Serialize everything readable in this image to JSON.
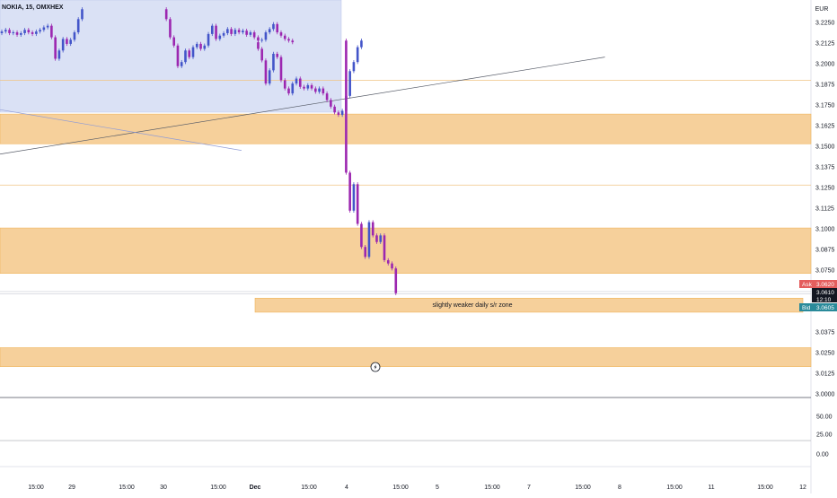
{
  "header": {
    "symbol_label": "NOKIA, 15, OMXHEX",
    "currency_label": "EUR"
  },
  "price_axis": {
    "ticks": [
      "3.2250",
      "3.2125",
      "3.2000",
      "3.1875",
      "3.1750",
      "3.1625",
      "3.1500",
      "3.1375",
      "3.1250",
      "3.1125",
      "3.1000",
      "3.0875",
      "3.0750",
      "3.0375",
      "3.0250",
      "3.0125",
      "3.0000"
    ]
  },
  "indicator_axis": {
    "ticks": [
      "50.00",
      "25.00",
      "0.00"
    ]
  },
  "quote_badges": {
    "ask_label": "Ask",
    "ask_value": "3.0620",
    "last_value": "3.0610",
    "countdown": "12:10",
    "bid_label": "Bid",
    "bid_value": "3.0605"
  },
  "annotation": {
    "zone_label": "slightly weaker daily s/r zone"
  },
  "time_axis": {
    "labels": [
      {
        "text": "15:00",
        "bold": false
      },
      {
        "text": "29",
        "bold": false
      },
      {
        "text": "15:00",
        "bold": false
      },
      {
        "text": "30",
        "bold": false
      },
      {
        "text": "15:00",
        "bold": false
      },
      {
        "text": "Dec",
        "bold": true
      },
      {
        "text": "15:00",
        "bold": false
      },
      {
        "text": "4",
        "bold": false
      },
      {
        "text": "15:00",
        "bold": false
      },
      {
        "text": "5",
        "bold": false
      },
      {
        "text": "15:00",
        "bold": false
      },
      {
        "text": "7",
        "bold": false
      },
      {
        "text": "15:00",
        "bold": false
      },
      {
        "text": "8",
        "bold": false
      },
      {
        "text": "15:00",
        "bold": false
      },
      {
        "text": "11",
        "bold": false
      },
      {
        "text": "15:00",
        "bold": false
      },
      {
        "text": "12",
        "bold": false
      }
    ]
  },
  "colors": {
    "zone_fill": "#f5cd96",
    "zone_border": "#f0b45a",
    "selection_fill": "#d4dcf3",
    "candle_up": "#4355c9",
    "candle_down": "#9c27b0",
    "ask": "#e45e5e",
    "bid": "#2a8a9a",
    "last": "#131722"
  },
  "chart_data": {
    "type": "candlestick",
    "instrument": "NOKIA",
    "interval": "15",
    "exchange": "OMXHEX",
    "currency": "EUR",
    "y_axis_range": [
      2.998,
      3.2335
    ],
    "s_r_zones": [
      {
        "low": 3.1515,
        "high": 3.1695
      },
      {
        "low": 3.073,
        "high": 3.1005
      },
      {
        "low": 3.0495,
        "high": 3.058,
        "label": "slightly weaker daily s/r zone"
      },
      {
        "low": 3.0165,
        "high": 3.028
      }
    ],
    "horizontal_lines": [
      3.19,
      3.1265,
      3.062,
      3.0605
    ],
    "close_sequence": [
      3.2195,
      3.2205,
      3.2185,
      3.219,
      3.2175,
      3.2185,
      3.2205,
      3.219,
      3.218,
      3.2195,
      3.2205,
      3.222,
      3.223,
      3.216,
      3.203,
      3.208,
      3.215,
      3.212,
      3.2145,
      3.219,
      3.227,
      3.233,
      3.227,
      3.216,
      3.211,
      3.1985,
      3.201,
      3.208,
      3.204,
      3.21,
      3.212,
      3.209,
      3.211,
      3.218,
      3.223,
      3.215,
      3.217,
      3.2185,
      3.221,
      3.218,
      3.2205,
      3.219,
      3.22,
      3.2175,
      3.219,
      3.216,
      3.214,
      3.2145,
      3.219,
      3.221,
      3.224,
      3.219,
      3.217,
      3.215,
      3.214,
      3.213,
      3.209,
      3.202,
      3.188,
      3.196,
      3.206,
      3.204,
      3.19,
      3.185,
      3.182,
      3.188,
      3.191,
      3.186,
      3.185,
      3.187,
      3.185,
      3.183,
      3.185,
      3.182,
      3.178,
      3.174,
      3.1705,
      3.169,
      3.1715,
      3.1805,
      3.1955,
      3.201,
      3.21,
      3.214,
      3.134,
      3.111,
      3.127,
      3.103,
      3.089,
      3.083,
      3.104,
      3.096,
      3.092,
      3.096,
      3.081,
      3.079,
      3.076,
      3.061
    ],
    "trendlines": [
      {
        "x_index": [
          -3.5,
          158
        ],
        "y": [
          3.144,
          3.204
        ]
      },
      {
        "x_index": [
          -3.5,
          63
        ],
        "y": [
          3.1735,
          3.1475
        ]
      }
    ],
    "indicator": {
      "axis_range": [
        0,
        50
      ],
      "ticks": [
        50,
        25,
        0
      ]
    }
  }
}
